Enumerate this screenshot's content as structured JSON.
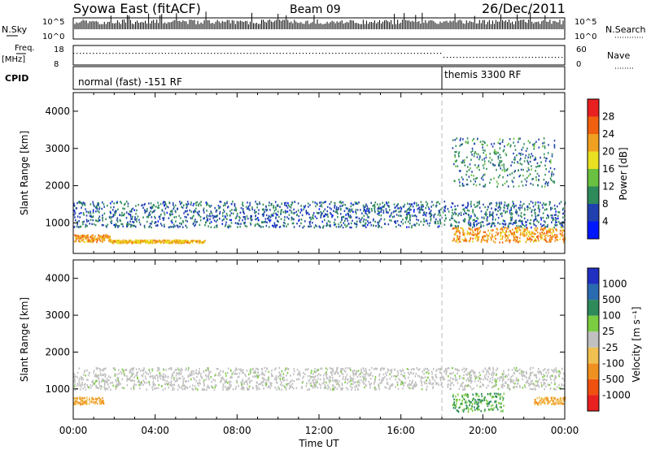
{
  "header": {
    "station": "Syowa East (fitACF)",
    "beam": "Beam 09",
    "date": "26/Dec/2011"
  },
  "nsky_panel": {
    "left_label": "N.Sky",
    "ticks_left": [
      "10^5",
      "10^0"
    ],
    "right_label": "N.Search",
    "ticks_right": [
      "10^5",
      "10^0"
    ]
  },
  "freq_panel": {
    "left_label_1": "Freq.",
    "left_label_2": "[MHz]",
    "ticks_left": [
      "18",
      "8"
    ],
    "right_label": "Nave",
    "ticks_right": [
      "60",
      "0"
    ]
  },
  "cpid_panel": {
    "left_label": "CPID",
    "modes": [
      {
        "label": "normal (fast) -151 RF",
        "start_hour": 0
      },
      {
        "label": "themis 3300 RF",
        "start_hour": 18
      }
    ]
  },
  "x_axis": {
    "ticks": [
      "00:00",
      "04:00",
      "08:00",
      "12:00",
      "16:00",
      "20:00",
      "00:00"
    ],
    "label": "Time UT"
  },
  "colors": {
    "power_scale": [
      "#0018ff",
      "#2040b0",
      "#2e8a5a",
      "#6ac040",
      "#e8e020",
      "#f0a020",
      "#f06010",
      "#e82020"
    ],
    "velocity_scale": [
      "#2030c0",
      "#2a6ab0",
      "#2e8a5a",
      "#7acc40",
      "#c0c0c0",
      "#f0c050",
      "#f09020",
      "#f05010",
      "#e82020"
    ]
  },
  "chart_data": [
    {
      "type": "heatmap",
      "title": "",
      "xlabel": "",
      "ylabel": "Slant Range [km]",
      "xlim": [
        0,
        24
      ],
      "ylim": [
        180,
        4500
      ],
      "yticks": [
        "1000",
        "2000",
        "3000",
        "4000"
      ],
      "colorbar": {
        "label": "Power [dB]",
        "ticks": [
          "4",
          "8",
          "12",
          "16",
          "20",
          "24",
          "28"
        ],
        "range": [
          0,
          30
        ]
      },
      "features": [
        {
          "desc": "main echo band",
          "x": [
            0,
            24
          ],
          "y_range_km": [
            900,
            1600
          ],
          "value_db": 6
        },
        {
          "desc": "strong near-range echo",
          "x": [
            0,
            1.8
          ],
          "y_range_km": [
            500,
            700
          ],
          "value_db": 22
        },
        {
          "desc": "arc echo",
          "x": [
            1.8,
            6.4
          ],
          "y_range_km": [
            480,
            560
          ],
          "value_db": 20
        },
        {
          "desc": "far-range patches",
          "x": [
            18.5,
            23.5
          ],
          "y_range_km": [
            2000,
            3300
          ],
          "value_db": 8
        },
        {
          "desc": "near-range patches",
          "x": [
            18.5,
            24
          ],
          "y_range_km": [
            500,
            900
          ],
          "value_db": 22
        }
      ]
    },
    {
      "type": "heatmap",
      "title": "",
      "xlabel": "Time UT",
      "ylabel": "Slant Range [km]",
      "xlim": [
        0,
        24
      ],
      "ylim": [
        180,
        4500
      ],
      "yticks": [
        "1000",
        "2000",
        "3000",
        "4000"
      ],
      "colorbar": {
        "label": "Velocity [m s⁻¹]",
        "ticks": [
          "1000",
          "500",
          "100",
          "25",
          "-25",
          "-100",
          "-500",
          "-1000"
        ]
      },
      "features": [
        {
          "desc": "ground scatter band",
          "x": [
            0,
            24
          ],
          "y_range_km": [
            1000,
            1600
          ],
          "value_ms": 0
        },
        {
          "desc": "near-range positive",
          "x": [
            0,
            1.5
          ],
          "y_range_km": [
            600,
            800
          ],
          "value_ms": -200
        },
        {
          "desc": "green near-range",
          "x": [
            18.5,
            21
          ],
          "y_range_km": [
            400,
            900
          ],
          "value_ms": 200
        },
        {
          "desc": "near-range orange",
          "x": [
            22.5,
            24
          ],
          "y_range_km": [
            600,
            800
          ],
          "value_ms": -300
        }
      ]
    }
  ]
}
